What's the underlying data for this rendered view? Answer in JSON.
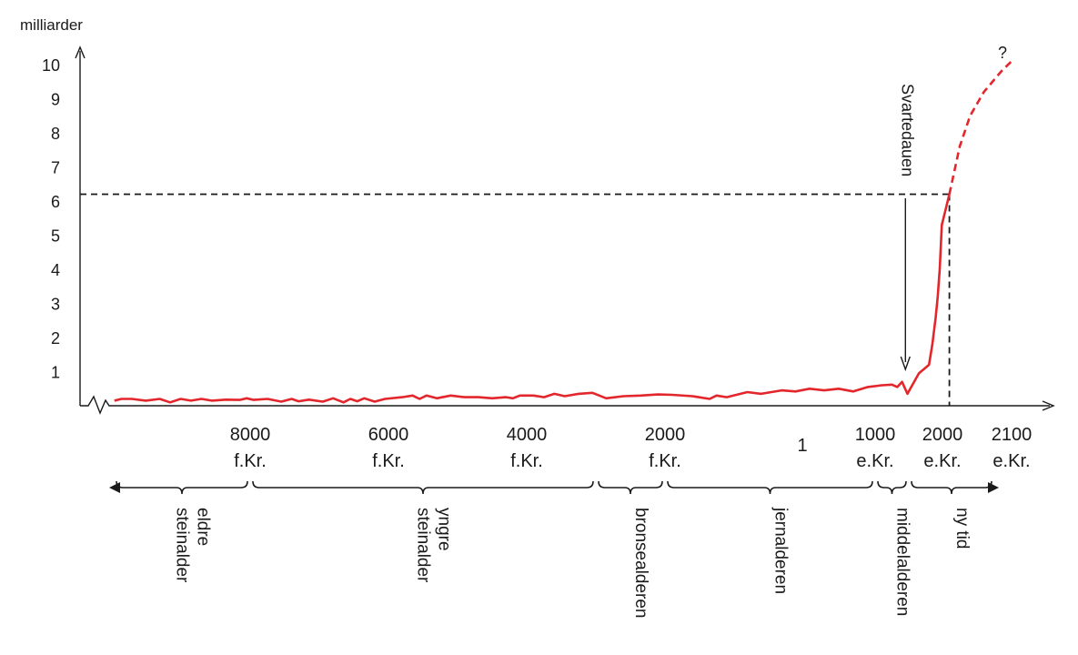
{
  "chart_data": {
    "type": "line",
    "xlabel": "",
    "ylabel": "milliarder",
    "ylim": [
      0,
      10
    ],
    "yticks": [
      "1",
      "2",
      "3",
      "4",
      "5",
      "6",
      "7",
      "8",
      "9",
      "10"
    ],
    "grid": false,
    "x_ticks": [
      {
        "year": -8000,
        "line1": "8000",
        "line2": "f.Kr."
      },
      {
        "year": -6000,
        "line1": "6000",
        "line2": "f.Kr."
      },
      {
        "year": -4000,
        "line1": "4000",
        "line2": "f.Kr."
      },
      {
        "year": -2000,
        "line1": "2000",
        "line2": "f.Kr."
      },
      {
        "year": 1,
        "line1": "1",
        "line2": ""
      },
      {
        "year": 1000,
        "line1": "1000",
        "line2": "e.Kr."
      },
      {
        "year": 2000,
        "line1": "2000",
        "line2": "e.Kr."
      },
      {
        "year": 2100,
        "line1": "2100",
        "line2": "e.Kr."
      }
    ],
    "series": [
      {
        "name": "",
        "style": "solid",
        "color": "#e3262b",
        "points": [
          [
            -9950,
            0.15
          ],
          [
            -9850,
            0.2
          ],
          [
            -9700,
            0.2
          ],
          [
            -9500,
            0.15
          ],
          [
            -9300,
            0.2
          ],
          [
            -9150,
            0.1
          ],
          [
            -9000,
            0.2
          ],
          [
            -8850,
            0.15
          ],
          [
            -8700,
            0.2
          ],
          [
            -8550,
            0.15
          ],
          [
            -8350,
            0.18
          ],
          [
            -8150,
            0.17
          ],
          [
            -8050,
            0.22
          ],
          [
            -7950,
            0.17
          ],
          [
            -7750,
            0.2
          ],
          [
            -7550,
            0.12
          ],
          [
            -7400,
            0.2
          ],
          [
            -7300,
            0.13
          ],
          [
            -7150,
            0.18
          ],
          [
            -6950,
            0.12
          ],
          [
            -6800,
            0.22
          ],
          [
            -6650,
            0.1
          ],
          [
            -6550,
            0.2
          ],
          [
            -6450,
            0.13
          ],
          [
            -6350,
            0.22
          ],
          [
            -6200,
            0.12
          ],
          [
            -6050,
            0.2
          ],
          [
            -5800,
            0.25
          ],
          [
            -5650,
            0.3
          ],
          [
            -5550,
            0.2
          ],
          [
            -5450,
            0.3
          ],
          [
            -5300,
            0.22
          ],
          [
            -5100,
            0.3
          ],
          [
            -4900,
            0.25
          ],
          [
            -4700,
            0.25
          ],
          [
            -4500,
            0.22
          ],
          [
            -4300,
            0.25
          ],
          [
            -4200,
            0.22
          ],
          [
            -4100,
            0.3
          ],
          [
            -3900,
            0.3
          ],
          [
            -3750,
            0.25
          ],
          [
            -3600,
            0.35
          ],
          [
            -3450,
            0.28
          ],
          [
            -3250,
            0.35
          ],
          [
            -3050,
            0.38
          ],
          [
            -2850,
            0.22
          ],
          [
            -2600,
            0.28
          ],
          [
            -2350,
            0.3
          ],
          [
            -2100,
            0.33
          ],
          [
            -1900,
            0.32
          ],
          [
            -1600,
            0.28
          ],
          [
            -1350,
            0.2
          ],
          [
            -1250,
            0.3
          ],
          [
            -1100,
            0.25
          ],
          [
            -800,
            0.4
          ],
          [
            -600,
            0.35
          ],
          [
            -300,
            0.45
          ],
          [
            -100,
            0.42
          ],
          [
            100,
            0.5
          ],
          [
            300,
            0.45
          ],
          [
            500,
            0.5
          ],
          [
            700,
            0.42
          ],
          [
            900,
            0.55
          ],
          [
            1100,
            0.6
          ],
          [
            1250,
            0.62
          ],
          [
            1330,
            0.55
          ],
          [
            1400,
            0.7
          ],
          [
            1480,
            0.35
          ],
          [
            1650,
            0.95
          ],
          [
            1800,
            1.2
          ],
          [
            1850,
            1.8
          ],
          [
            1900,
            2.6
          ],
          [
            1930,
            3.2
          ],
          [
            1960,
            4.0
          ],
          [
            1990,
            5.3
          ],
          [
            2010,
            6.2
          ]
        ]
      },
      {
        "name": "",
        "style": "dashed",
        "color": "#e3262b",
        "points": [
          [
            2010,
            6.2
          ],
          [
            2025,
            7.6
          ],
          [
            2040,
            8.5
          ],
          [
            2060,
            9.2
          ],
          [
            2085,
            9.8
          ],
          [
            2100,
            10.1
          ]
        ]
      }
    ],
    "reference_value": 6.2,
    "reference_year": 2010,
    "annotations": [
      {
        "text": "Svartedauen",
        "year": 1450
      },
      {
        "text": "?",
        "year": 2100
      }
    ],
    "periods": [
      {
        "label_lines": [
          "eldre",
          "steinalder"
        ],
        "start": "axis-start",
        "end": -8000
      },
      {
        "label_lines": [
          "yngre",
          "steinalder"
        ],
        "start": -8000,
        "end": -3000
      },
      {
        "label_lines": [
          "bronsealderen"
        ],
        "start": -3000,
        "end": -2000
      },
      {
        "label_lines": [
          "jernalderen"
        ],
        "start": -2000,
        "end": 1000
      },
      {
        "label_lines": [
          "middelalderen"
        ],
        "start": 1000,
        "end": 1500
      },
      {
        "label_lines": [
          "ny tid"
        ],
        "start": 1500,
        "end": "axis-end"
      }
    ]
  }
}
